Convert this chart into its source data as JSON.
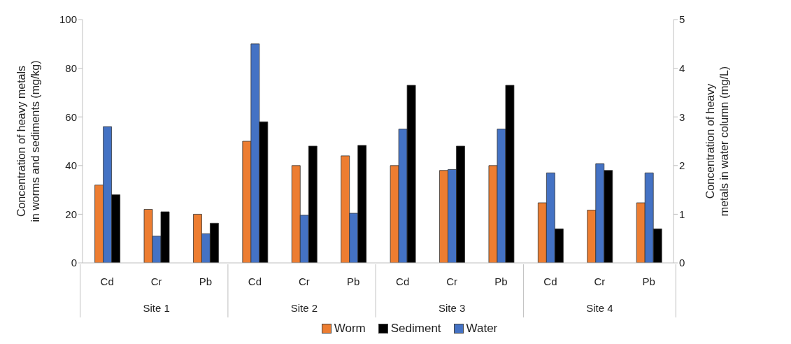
{
  "chart_data": {
    "type": "bar",
    "categories": [
      "Cd",
      "Cr",
      "Pb",
      "Cd",
      "Cr",
      "Pb",
      "Cd",
      "Cr",
      "Pb",
      "Cd",
      "Cr",
      "Pb"
    ],
    "annotations": [
      "Site 1",
      "Site 2",
      "Site 3",
      "Site 4"
    ],
    "ylabel": "Concentration of heavy metals in worms and sediments (mg/kg)",
    "y2label": "Concentration of heavy metals in water column (mg/L)",
    "series": [
      {
        "name": "Worm",
        "color": "#ed7d31",
        "values": [
          32,
          22,
          20,
          50,
          40,
          44,
          40,
          38,
          40,
          24.7,
          21.7,
          24.7
        ]
      },
      {
        "name": "Water",
        "color": "#4472c4",
        "axis": "y2",
        "values": [
          2.8,
          0.55,
          0.6,
          4.5,
          0.98,
          1.02,
          2.75,
          1.92,
          2.75,
          1.85,
          2.04,
          1.85
        ]
      },
      {
        "name": "Sediment",
        "color": "#000000",
        "values": [
          28,
          21,
          16.3,
          58,
          48,
          48.3,
          73,
          48,
          73,
          14,
          38,
          14
        ]
      }
    ],
    "ylim": [
      0,
      100
    ],
    "yticks": [
      0,
      20,
      40,
      60,
      80,
      100
    ],
    "y2lim": [
      0,
      5
    ],
    "y2ticks": [
      0,
      1,
      2,
      3,
      4,
      5
    ],
    "grid": false,
    "legend": "bottom"
  }
}
